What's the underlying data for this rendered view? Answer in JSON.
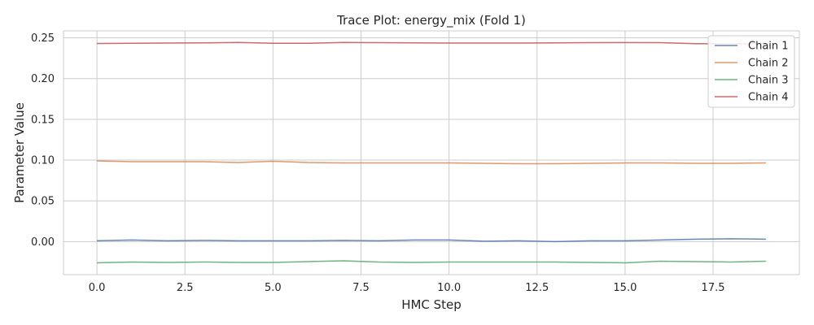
{
  "chart_data": {
    "type": "line",
    "title": "Trace Plot: energy_mix (Fold 1)",
    "xlabel": "HMC Step",
    "ylabel": "Parameter Value",
    "xlim": [
      -0.95,
      19.95
    ],
    "ylim": [
      -0.0405,
      0.2585
    ],
    "x_ticks": [
      0.0,
      2.5,
      5.0,
      7.5,
      10.0,
      12.5,
      15.0,
      17.5
    ],
    "x_tick_labels": [
      "0.0",
      "2.5",
      "5.0",
      "7.5",
      "10.0",
      "12.5",
      "15.0",
      "17.5"
    ],
    "y_ticks": [
      0.0,
      0.05,
      0.1,
      0.15,
      0.2,
      0.25
    ],
    "y_tick_labels": [
      "0.00",
      "0.05",
      "0.10",
      "0.15",
      "0.20",
      "0.25"
    ],
    "grid": true,
    "legend_position": "top-right",
    "x": [
      0,
      1,
      2,
      3,
      4,
      5,
      6,
      7,
      8,
      9,
      10,
      11,
      12,
      13,
      14,
      15,
      16,
      17,
      18,
      19
    ],
    "series": [
      {
        "name": "Chain 1",
        "color": "#4c72b0",
        "values": [
          0.001,
          0.002,
          0.001,
          0.0015,
          0.001,
          0.001,
          0.001,
          0.0015,
          0.001,
          0.002,
          0.002,
          0.0005,
          0.001,
          0.0,
          0.001,
          0.001,
          0.002,
          0.003,
          0.0035,
          0.003
        ]
      },
      {
        "name": "Chain 2",
        "color": "#dd8452",
        "values": [
          0.099,
          0.098,
          0.098,
          0.098,
          0.097,
          0.0985,
          0.097,
          0.0965,
          0.0965,
          0.0965,
          0.0965,
          0.096,
          0.0955,
          0.0955,
          0.096,
          0.0965,
          0.0965,
          0.096,
          0.096,
          0.0965
        ]
      },
      {
        "name": "Chain 3",
        "color": "#55a868",
        "values": [
          -0.026,
          -0.025,
          -0.0255,
          -0.025,
          -0.0255,
          -0.0255,
          -0.0245,
          -0.0235,
          -0.025,
          -0.0255,
          -0.025,
          -0.025,
          -0.025,
          -0.025,
          -0.0255,
          -0.026,
          -0.024,
          -0.0245,
          -0.025,
          -0.024
        ]
      },
      {
        "name": "Chain 4",
        "color": "#c44e52",
        "values": [
          0.243,
          0.2433,
          0.2435,
          0.2438,
          0.2443,
          0.2433,
          0.2433,
          0.2443,
          0.244,
          0.2438,
          0.2436,
          0.2436,
          0.2435,
          0.2438,
          0.244,
          0.2442,
          0.244,
          0.2428,
          0.2425,
          0.243
        ]
      }
    ]
  }
}
